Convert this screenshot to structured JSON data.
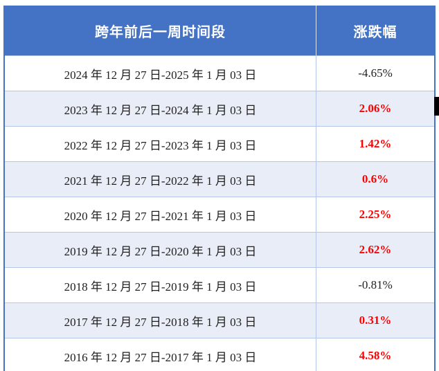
{
  "table": {
    "header": {
      "period_label": "跨年前后一周时间段",
      "change_label": "涨跌幅"
    },
    "rows": [
      {
        "period": "2024 年 12 月 27 日-2025 年 1 月 03 日",
        "change": "-4.65%",
        "direction": "down"
      },
      {
        "period": "2023 年 12 月 27 日-2024 年 1 月 03 日",
        "change": "2.06%",
        "direction": "up"
      },
      {
        "period": "2022 年 12 月 27 日-2023 年 1 月 03 日",
        "change": "1.42%",
        "direction": "up"
      },
      {
        "period": "2021 年 12 月 27 日-2022 年 1 月 03 日",
        "change": "0.6%",
        "direction": "up"
      },
      {
        "period": "2020 年 12 月 27 日-2021 年 1 月 03 日",
        "change": "2.25%",
        "direction": "up"
      },
      {
        "period": "2019 年 12 月 27 日-2020 年 1 月 03 日",
        "change": "2.62%",
        "direction": "up"
      },
      {
        "period": "2018 年 12 月 27 日-2019 年 1 月 03 日",
        "change": "-0.81%",
        "direction": "down"
      },
      {
        "period": "2017 年 12 月 27 日-2018 年 1 月 03 日",
        "change": "0.31%",
        "direction": "up"
      },
      {
        "period": "2016 年 12 月 27 日-2017 年 1 月 03 日",
        "change": "4.58%",
        "direction": "up"
      }
    ]
  },
  "colors": {
    "header_bg": "#4472C4",
    "header_text": "#FFFFFF",
    "row_alt_bg": "#E9EDF7",
    "row_bg": "#FFFFFF",
    "grid_line": "#B4C6E7",
    "outer_border": "#4472C4",
    "positive_value": "#FF0000",
    "negative_value": "#1F1F1F"
  },
  "chart_data": {
    "type": "table",
    "title": "",
    "columns": [
      "跨年前后一周时间段",
      "涨跌幅"
    ],
    "rows": [
      [
        "2024年12月27日-2025年1月03日",
        "-4.65%"
      ],
      [
        "2023年12月27日-2024年1月03日",
        "2.06%"
      ],
      [
        "2022年12月27日-2023年1月03日",
        "1.42%"
      ],
      [
        "2021年12月27日-2022年1月03日",
        "0.6%"
      ],
      [
        "2020年12月27日-2021年1月03日",
        "2.25%"
      ],
      [
        "2019年12月27日-2020年1月03日",
        "2.62%"
      ],
      [
        "2018年12月27日-2019年1月03日",
        "-0.81%"
      ],
      [
        "2017年12月27日-2018年1月03日",
        "0.31%"
      ],
      [
        "2016年12月27日-2017年1月03日",
        "4.58%"
      ]
    ],
    "values_numeric_pct": [
      -4.65,
      2.06,
      1.42,
      0.6,
      2.25,
      2.62,
      -0.81,
      0.31,
      4.58
    ],
    "style_notes": "positive values rendered bold red, negative values plain black"
  }
}
